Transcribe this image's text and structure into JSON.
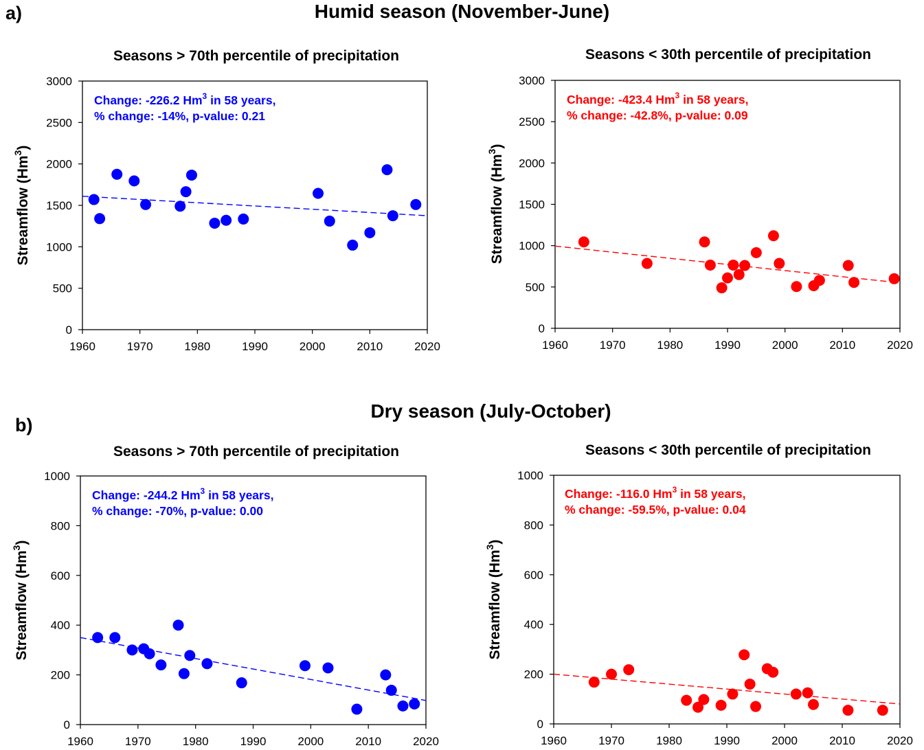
{
  "figure": {
    "section_a": {
      "label": "a)",
      "title": "Humid season (November-June)"
    },
    "section_b": {
      "label": "b)",
      "title": "Dry season (July-October)"
    }
  },
  "chart_data": [
    {
      "id": "a-left",
      "type": "scatter",
      "title": "Seasons > 70th percentile of precipitation",
      "xlabel": "",
      "ylabel": "Streamflow (Hm3)",
      "ylabel_parts": {
        "base": "Streamflow (Hm",
        "sup": "3",
        "close": ")"
      },
      "xlim": [
        1960,
        2020
      ],
      "ylim": [
        0,
        3000
      ],
      "xticks": [
        1960,
        1970,
        1980,
        1990,
        2000,
        2010,
        2020
      ],
      "yticks": [
        0,
        500,
        1000,
        1500,
        2000,
        2500,
        3000
      ],
      "color": "#0000ff",
      "annotation": {
        "line1": {
          "prefix": "Change: -226.2 Hm",
          "sup": "3",
          "suffix": " in 58 years,"
        },
        "line2": "% change: -14%, p-value: 0.21"
      },
      "points": [
        [
          1962,
          1570
        ],
        [
          1963,
          1340
        ],
        [
          1966,
          1875
        ],
        [
          1969,
          1795
        ],
        [
          1971,
          1510
        ],
        [
          1977,
          1490
        ],
        [
          1978,
          1665
        ],
        [
          1979,
          1865
        ],
        [
          1983,
          1285
        ],
        [
          1985,
          1320
        ],
        [
          1988,
          1335
        ],
        [
          2001,
          1645
        ],
        [
          2003,
          1310
        ],
        [
          2007,
          1020
        ],
        [
          2010,
          1170
        ],
        [
          2013,
          1930
        ],
        [
          2014,
          1375
        ],
        [
          2018,
          1510
        ]
      ],
      "trend": {
        "x": [
          1960,
          2020
        ],
        "y": [
          1610,
          1375
        ]
      }
    },
    {
      "id": "a-right",
      "type": "scatter",
      "title": "Seasons < 30th percentile of precipitation",
      "xlabel": "",
      "ylabel": "Streamflow (Hm3)",
      "ylabel_parts": {
        "base": "Streamflow (Hm",
        "sup": "3",
        "close": ")"
      },
      "xlim": [
        1960,
        2020
      ],
      "ylim": [
        0,
        3000
      ],
      "xticks": [
        1960,
        1970,
        1980,
        1990,
        2000,
        2010,
        2020
      ],
      "yticks": [
        0,
        500,
        1000,
        1500,
        2000,
        2500,
        3000
      ],
      "color": "#ff0000",
      "annotation": {
        "line1": {
          "prefix": "Change: -423.4 Hm",
          "sup": "3",
          "suffix": " in 58 years,"
        },
        "line2": "% change: -42.8%, p-value: 0.09"
      },
      "points": [
        [
          1965,
          1045
        ],
        [
          1976,
          785
        ],
        [
          1986,
          1045
        ],
        [
          1987,
          765
        ],
        [
          1989,
          490
        ],
        [
          1990,
          610
        ],
        [
          1991,
          765
        ],
        [
          1992,
          650
        ],
        [
          1993,
          760
        ],
        [
          1995,
          915
        ],
        [
          1998,
          1120
        ],
        [
          1999,
          785
        ],
        [
          2002,
          505
        ],
        [
          2005,
          515
        ],
        [
          2006,
          580
        ],
        [
          2011,
          760
        ],
        [
          2012,
          555
        ],
        [
          2019,
          600
        ]
      ],
      "trend": {
        "x": [
          1960,
          2020
        ],
        "y": [
          995,
          550
        ]
      }
    },
    {
      "id": "b-left",
      "type": "scatter",
      "title": "Seasons > 70th percentile of precipitation",
      "xlabel": "",
      "ylabel": "Streamflow (Hm3)",
      "ylabel_parts": {
        "base": "Streamflow (Hm",
        "sup": "3",
        "close": ")"
      },
      "xlim": [
        1960,
        2020
      ],
      "ylim": [
        0,
        1000
      ],
      "xticks": [
        1960,
        1970,
        1980,
        1990,
        2000,
        2010,
        2020
      ],
      "yticks": [
        0,
        200,
        400,
        600,
        800,
        1000
      ],
      "color": "#0000ff",
      "annotation": {
        "line1": {
          "prefix": "Change: -244.2 Hm",
          "sup": "3",
          "suffix": " in 58 years,"
        },
        "line2": "% change: -70%, p-value: 0.00"
      },
      "points": [
        [
          1963,
          350
        ],
        [
          1966,
          350
        ],
        [
          1969,
          300
        ],
        [
          1971,
          305
        ],
        [
          1972,
          285
        ],
        [
          1974,
          240
        ],
        [
          1977,
          400
        ],
        [
          1978,
          205
        ],
        [
          1979,
          278
        ],
        [
          1982,
          245
        ],
        [
          1988,
          168
        ],
        [
          1999,
          237
        ],
        [
          2003,
          228
        ],
        [
          2008,
          62
        ],
        [
          2013,
          200
        ],
        [
          2014,
          138
        ],
        [
          2016,
          75
        ],
        [
          2018,
          83
        ]
      ],
      "trend": {
        "x": [
          1960,
          2020
        ],
        "y": [
          350,
          97
        ]
      }
    },
    {
      "id": "b-right",
      "type": "scatter",
      "title": "Seasons < 30th percentile of precipitation",
      "xlabel": "",
      "ylabel": "Streamflow (Hm3)",
      "ylabel_parts": {
        "base": "Streamflow (Hm",
        "sup": "3",
        "close": ")"
      },
      "xlim": [
        1960,
        2020
      ],
      "ylim": [
        0,
        1000
      ],
      "xticks": [
        1960,
        1970,
        1980,
        1990,
        2000,
        2010,
        2020
      ],
      "yticks": [
        0,
        200,
        400,
        600,
        800,
        1000
      ],
      "color": "#ff0000",
      "annotation": {
        "line1": {
          "prefix": "Change: -116.0 Hm",
          "sup": "3",
          "suffix": " in 58 years,"
        },
        "line2": "% change: -59.5%, p-value: 0.04"
      },
      "points": [
        [
          1967,
          168
        ],
        [
          1970,
          200
        ],
        [
          1973,
          218
        ],
        [
          1983,
          95
        ],
        [
          1985,
          67
        ],
        [
          1986,
          98
        ],
        [
          1989,
          75
        ],
        [
          1991,
          120
        ],
        [
          1993,
          278
        ],
        [
          1994,
          160
        ],
        [
          1995,
          70
        ],
        [
          1997,
          222
        ],
        [
          1998,
          208
        ],
        [
          2002,
          120
        ],
        [
          2004,
          125
        ],
        [
          2005,
          78
        ],
        [
          2011,
          55
        ],
        [
          2017,
          55
        ]
      ],
      "trend": {
        "x": [
          1960,
          2020
        ],
        "y": [
          200,
          80
        ]
      }
    }
  ]
}
